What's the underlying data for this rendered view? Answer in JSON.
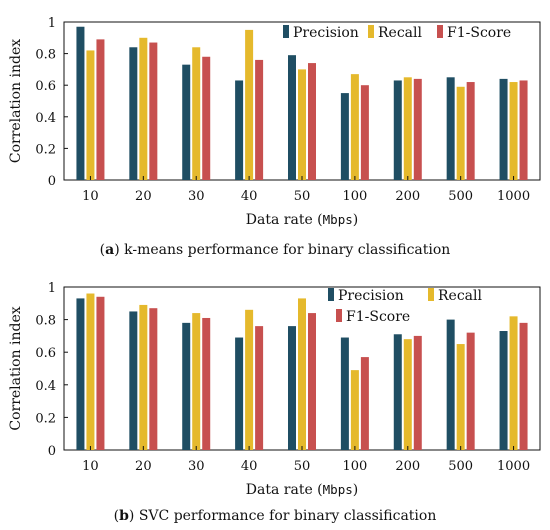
{
  "colors": {
    "precision": "#1f4e63",
    "recall": "#e5b92c",
    "f1": "#c7504f"
  },
  "charts": [
    {
      "caption_letter": "a",
      "caption_text": " k-means performance for binary classification",
      "xlabel_prefix": "Data rate (",
      "xlabel_unit": "Mbps",
      "xlabel_suffix": ")",
      "ylabel": "Correlation index"
    },
    {
      "caption_letter": "b",
      "caption_text": " SVC performance for binary classification",
      "xlabel_prefix": "Data rate (",
      "xlabel_unit": "Mbps",
      "xlabel_suffix": ")",
      "ylabel": "Correlation index"
    }
  ],
  "chart_data": [
    {
      "type": "bar",
      "categories": [
        "10",
        "20",
        "30",
        "40",
        "50",
        "100",
        "200",
        "500",
        "1000"
      ],
      "series": [
        {
          "name": "Precision",
          "values": [
            0.97,
            0.84,
            0.73,
            0.63,
            0.79,
            0.55,
            0.63,
            0.65,
            0.64
          ]
        },
        {
          "name": "Recall",
          "values": [
            0.82,
            0.9,
            0.84,
            0.95,
            0.7,
            0.67,
            0.65,
            0.59,
            0.62
          ]
        },
        {
          "name": "F1-Score",
          "values": [
            0.89,
            0.87,
            0.78,
            0.76,
            0.74,
            0.6,
            0.64,
            0.62,
            0.63
          ]
        }
      ],
      "xlabel": "Data rate (Mbps)",
      "ylabel": "Correlation index",
      "ylim": [
        0,
        1
      ],
      "yticks": [
        "0",
        "0.2",
        "0.4",
        "0.6",
        "0.8",
        "1"
      ],
      "legend": "top-right",
      "legend_layout": "single-row"
    },
    {
      "type": "bar",
      "categories": [
        "10",
        "20",
        "30",
        "40",
        "50",
        "100",
        "200",
        "500",
        "1000"
      ],
      "series": [
        {
          "name": "Precision",
          "values": [
            0.93,
            0.85,
            0.78,
            0.69,
            0.76,
            0.69,
            0.71,
            0.8,
            0.73
          ]
        },
        {
          "name": "Recall",
          "values": [
            0.96,
            0.89,
            0.84,
            0.86,
            0.93,
            0.49,
            0.68,
            0.65,
            0.82
          ]
        },
        {
          "name": "F1-Score",
          "values": [
            0.94,
            0.87,
            0.81,
            0.76,
            0.84,
            0.57,
            0.7,
            0.72,
            0.78
          ]
        }
      ],
      "xlabel": "Data rate (Mbps)",
      "ylabel": "Correlation index",
      "ylim": [
        0,
        1
      ],
      "yticks": [
        "0",
        "0.2",
        "0.4",
        "0.6",
        "0.8",
        "1"
      ],
      "legend": "top-right",
      "legend_layout": "two-rows"
    }
  ]
}
